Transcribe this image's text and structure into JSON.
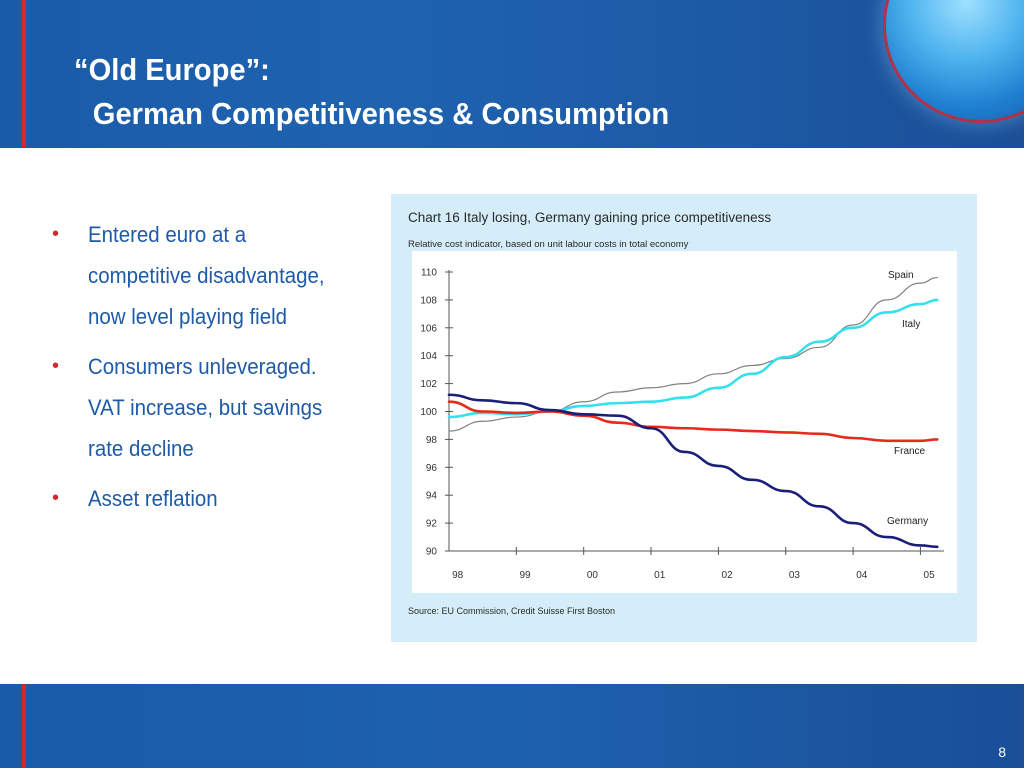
{
  "slide": {
    "title_line1": "“Old Europe”:",
    "title_line2": "German Competitiveness & Consumption",
    "page_number": "8",
    "colors": {
      "header_blue": "#1f63b0",
      "accent_red": "#d8262f",
      "bullet_text": "#1f5aa8",
      "chart_panel": "#d5edf8"
    }
  },
  "bullets": [
    {
      "text": "Entered euro at a\ncompetitive disadvantage,\nnow level playing field"
    },
    {
      "text": "Consumers unleveraged.\nVAT increase, but savings\nrate decline"
    },
    {
      "text": "Asset reflation"
    }
  ],
  "chart_data": {
    "type": "line",
    "title": "Chart 16 Italy losing, Germany gaining price competitiveness",
    "subtitle": "Relative cost indicator, based on unit labour costs in total economy",
    "source": "Source: EU Commission, Credit Suisse First Boston",
    "x_tick_labels": [
      "98",
      "99",
      "00",
      "01",
      "02",
      "03",
      "04",
      "05"
    ],
    "y_tick_labels": [
      "90",
      "92",
      "94",
      "96",
      "98",
      "100",
      "102",
      "104",
      "106",
      "108",
      "110"
    ],
    "xlim": [
      1998.0,
      2005.35
    ],
    "ylim": [
      90,
      110
    ],
    "grid": false,
    "x": [
      1998.0,
      1998.5,
      1999.0,
      1999.5,
      2000.0,
      2000.5,
      2001.0,
      2001.5,
      2002.0,
      2002.5,
      2003.0,
      2003.5,
      2004.0,
      2004.5,
      2005.0,
      2005.25
    ],
    "series": [
      {
        "name": "Spain",
        "color": "#808080",
        "values": [
          98.6,
          99.3,
          99.6,
          100.0,
          100.7,
          101.4,
          101.7,
          102.0,
          102.7,
          103.3,
          103.8,
          104.6,
          106.2,
          108.0,
          109.2,
          109.6
        ]
      },
      {
        "name": "Italy",
        "color": "#33e0ee",
        "values": [
          99.6,
          99.9,
          99.8,
          100.0,
          100.4,
          100.6,
          100.7,
          101.0,
          101.7,
          102.7,
          103.9,
          105.0,
          106.0,
          107.1,
          107.7,
          108.0
        ]
      },
      {
        "name": "France",
        "color": "#e82a1c",
        "values": [
          100.7,
          100.0,
          99.9,
          100.0,
          99.7,
          99.2,
          98.9,
          98.8,
          98.7,
          98.6,
          98.5,
          98.4,
          98.1,
          97.9,
          97.9,
          98.0
        ]
      },
      {
        "name": "Germany",
        "color": "#1a1f7a",
        "values": [
          101.2,
          100.8,
          100.6,
          100.1,
          99.8,
          99.7,
          98.8,
          97.1,
          96.1,
          95.1,
          94.3,
          93.2,
          92.0,
          91.0,
          90.4,
          90.3
        ]
      }
    ]
  }
}
